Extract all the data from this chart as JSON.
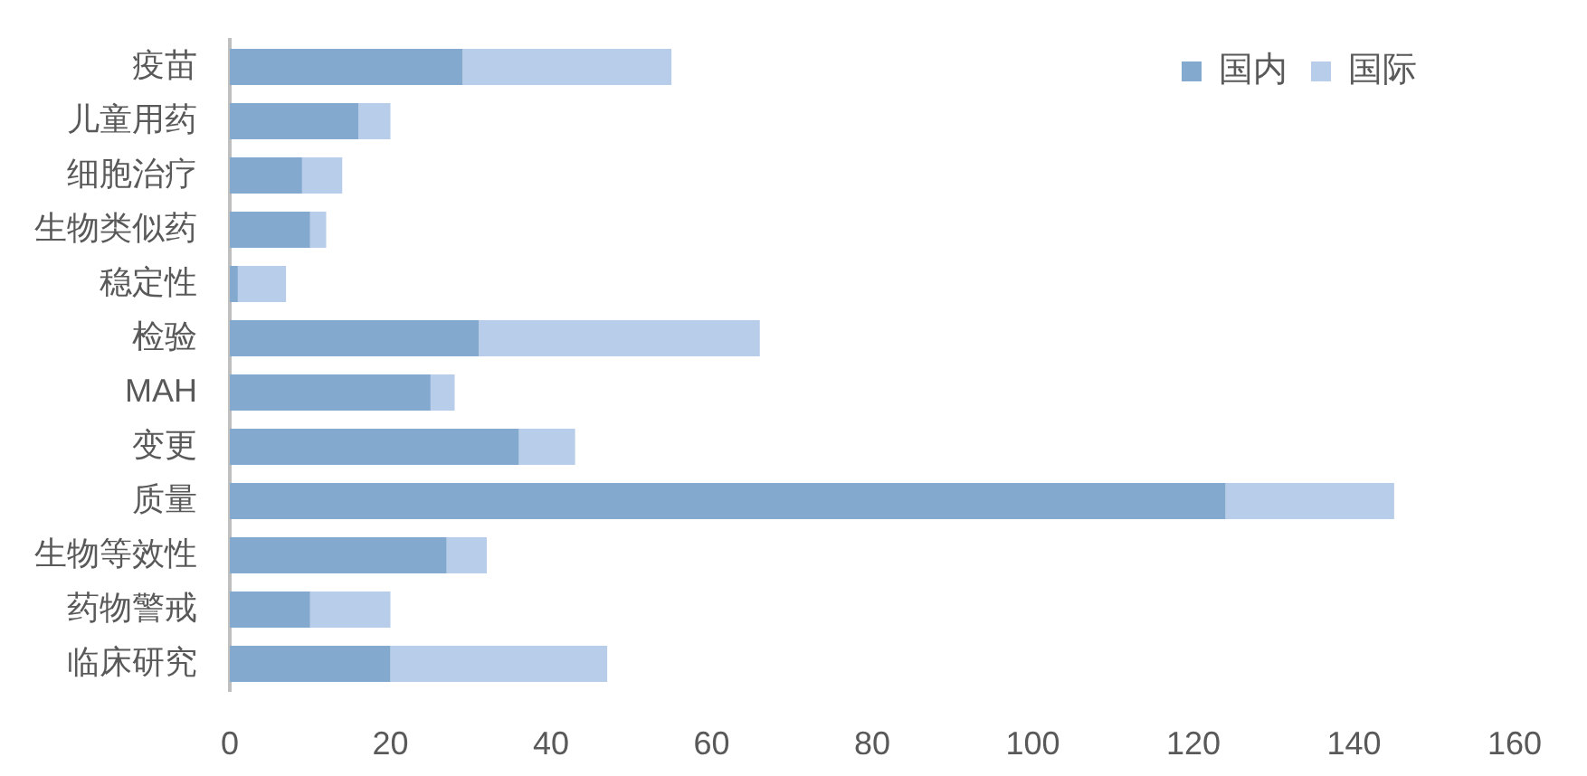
{
  "chart_data": {
    "type": "bar",
    "orientation": "horizontal",
    "stacked": true,
    "categories": [
      "疫苗",
      "儿童用药",
      "细胞治疗",
      "生物类似药",
      "稳定性",
      "检验",
      "MAH",
      "变更",
      "质量",
      "生物等效性",
      "药物警戒",
      "临床研究"
    ],
    "series": [
      {
        "name": "国内",
        "color": "#84a9cf",
        "values": [
          29,
          16,
          9,
          10,
          1,
          31,
          25,
          36,
          124,
          27,
          10,
          20
        ]
      },
      {
        "name": "国际",
        "color": "#b7cde9",
        "values": [
          26,
          4,
          5,
          2,
          6,
          35,
          3,
          7,
          21,
          5,
          10,
          27
        ]
      }
    ],
    "xlim": [
      0,
      160
    ],
    "xticks": [
      0,
      20,
      40,
      60,
      80,
      100,
      120,
      140,
      160
    ],
    "legend": "top right"
  }
}
